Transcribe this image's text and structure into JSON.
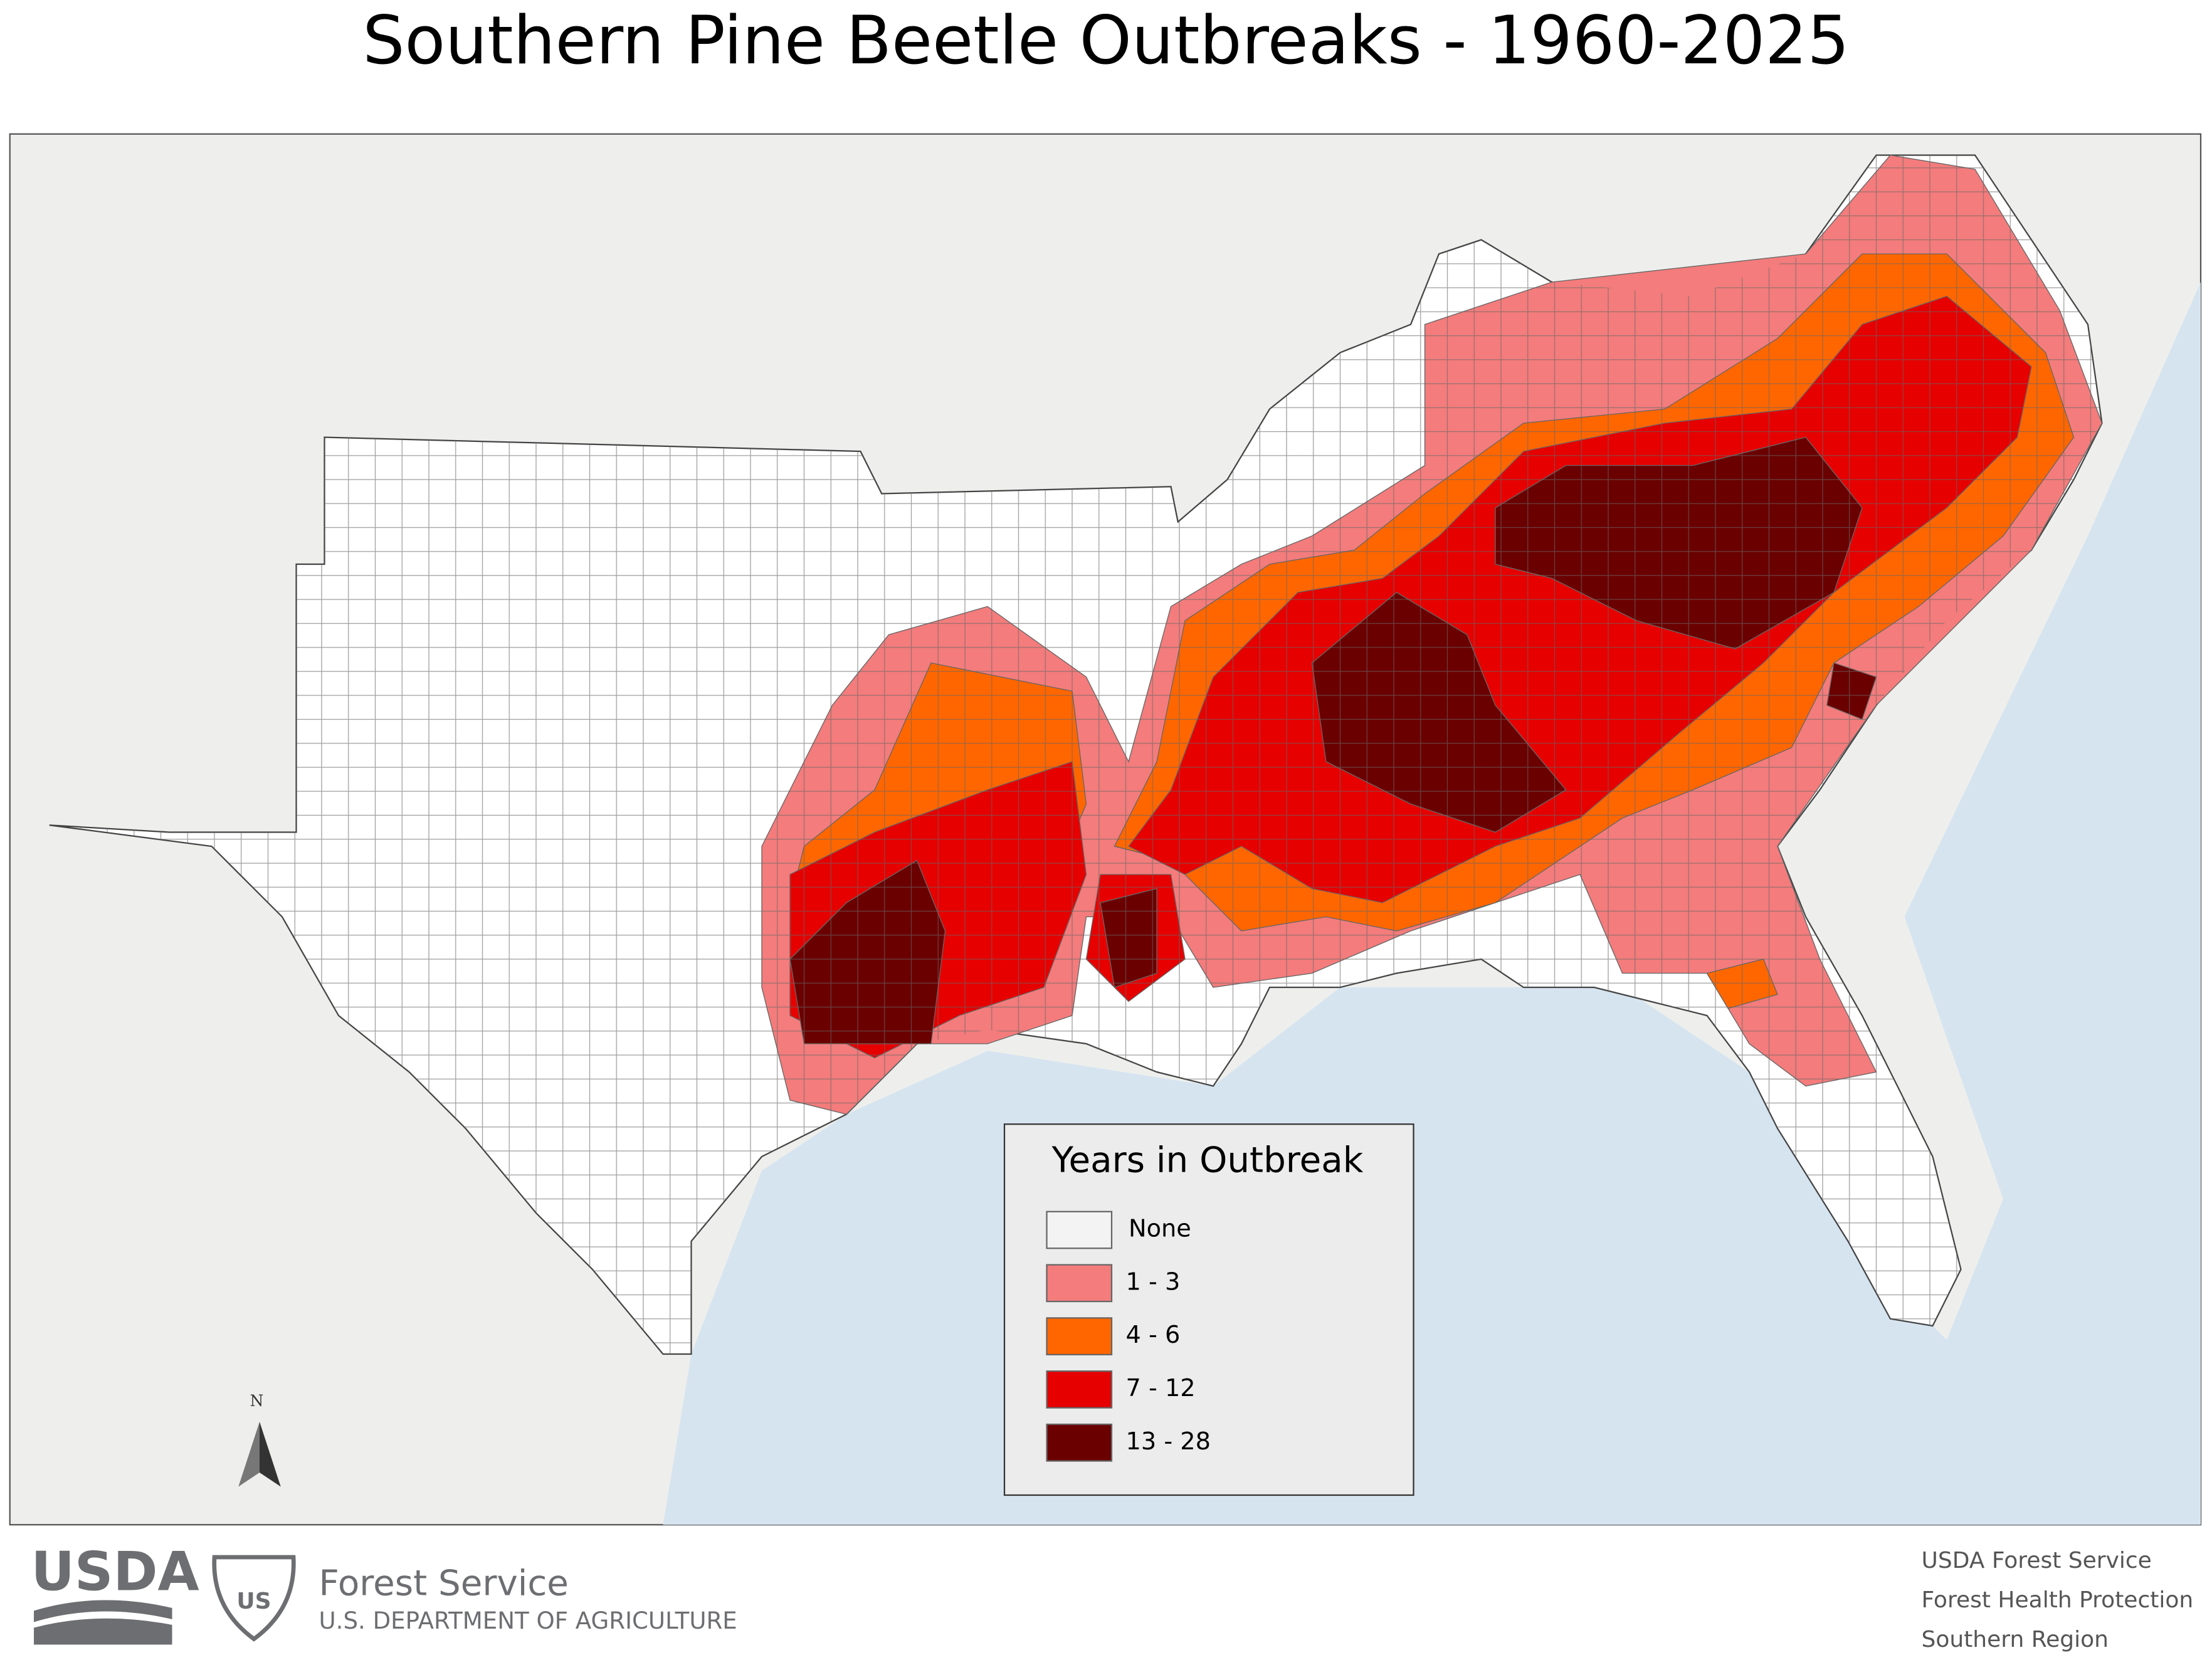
{
  "title": "Southern Pine Beetle Outbreaks - 1960-2025",
  "legend": {
    "title": "Years in Outbreak",
    "items": [
      {
        "label": "None",
        "color": "#f3f3f3"
      },
      {
        "label": "1 - 3",
        "color": "#f47c7c"
      },
      {
        "label": "4 - 6",
        "color": "#ff6600"
      },
      {
        "label": "7 - 12",
        "color": "#e60000"
      },
      {
        "label": "13 - 28",
        "color": "#6b0000"
      }
    ]
  },
  "north_arrow": "N",
  "footer": {
    "logo": "USDA",
    "agency": "Forest Service",
    "department": "U.S. DEPARTMENT OF AGRICULTURE",
    "credits": [
      "USDA Forest Service",
      "Forest Health Protection",
      "Southern Region"
    ]
  }
}
